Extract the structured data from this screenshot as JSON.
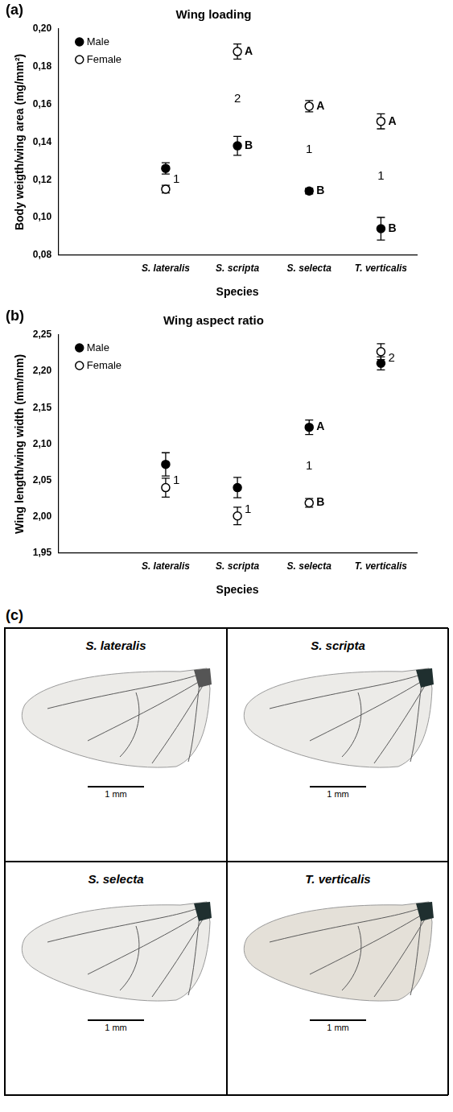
{
  "chart_data": [
    {
      "type": "scatter",
      "panel": "(a)",
      "title": "Wing loading",
      "x_label": "Species",
      "y_label": "Body weigth/wing area (mg/mm²)",
      "categories": [
        null,
        "S. lateralis",
        "S. scripta",
        "S. selecta",
        "T. verticalis"
      ],
      "series": [
        {
          "name": "Male",
          "color": "#000000",
          "marker": "circle",
          "values": [
            null,
            0.126,
            0.138,
            0.114,
            0.094
          ],
          "errors": [
            null,
            0.003,
            0.005,
            0.0015,
            0.006
          ]
        },
        {
          "name": "Female",
          "color": "#000000",
          "marker": "open_circle",
          "values": [
            null,
            0.115,
            0.188,
            0.159,
            0.151
          ],
          "errors": [
            null,
            0.002,
            0.004,
            0.003,
            0.004
          ]
        }
      ],
      "ylim": [
        0.08,
        0.2
      ],
      "yticks": [
        {
          "value": 0.08,
          "label": "0,08"
        },
        {
          "value": 0.1,
          "label": "0,10"
        },
        {
          "value": 0.12,
          "label": "0,12"
        },
        {
          "value": 0.14,
          "label": "0,14"
        },
        {
          "value": 0.16,
          "label": "0,16"
        },
        {
          "value": 0.18,
          "label": "0,18"
        },
        {
          "value": 0.2,
          "label": "0,20"
        }
      ],
      "grid": false,
      "legend": "top left",
      "annotations": [
        {
          "text": "1",
          "x": "S. lateralis",
          "y": 0.12
        },
        {
          "text": "A",
          "x": "S. scripta",
          "y": 0.188
        },
        {
          "text": "2",
          "x": "S. scripta",
          "y": 0.163
        },
        {
          "text": "B",
          "x": "S. scripta",
          "y": 0.138
        },
        {
          "text": "A",
          "x": "S. selecta",
          "y": 0.159
        },
        {
          "text": "1",
          "x": "S. selecta",
          "y": 0.136
        },
        {
          "text": "B",
          "x": "S. selecta",
          "y": 0.114
        },
        {
          "text": "A",
          "x": "T. verticalis",
          "y": 0.151
        },
        {
          "text": "1",
          "x": "T. verticalis",
          "y": 0.122
        },
        {
          "text": "B",
          "x": "T. verticalis",
          "y": 0.094
        }
      ]
    },
    {
      "type": "scatter",
      "panel": "(b)",
      "title": "Wing aspect ratio",
      "x_label": "Species",
      "y_label": "Wing length/wing width (mm/mm)",
      "categories": [
        null,
        "S. lateralis",
        "S. scripta",
        "S. selecta",
        "T. verticalis"
      ],
      "series": [
        {
          "name": "Male",
          "color": "#000000",
          "marker": "circle",
          "values": [
            null,
            2.072,
            2.04,
            2.123,
            2.211
          ],
          "errors": [
            null,
            0.016,
            0.014,
            0.01,
            0.009
          ]
        },
        {
          "name": "Female",
          "color": "#000000",
          "marker": "open_circle",
          "values": [
            null,
            2.04,
            2.001,
            2.019,
            2.227
          ],
          "errors": [
            null,
            0.013,
            0.012,
            0.006,
            0.011
          ]
        }
      ],
      "ylim": [
        1.95,
        2.25
      ],
      "yticks": [
        {
          "value": 1.95,
          "label": "1,95"
        },
        {
          "value": 2.0,
          "label": "2,00"
        },
        {
          "value": 2.05,
          "label": "2,05"
        },
        {
          "value": 2.1,
          "label": "2,10"
        },
        {
          "value": 2.15,
          "label": "2,15"
        },
        {
          "value": 2.2,
          "label": "2,20"
        },
        {
          "value": 2.25,
          "label": "2,25"
        }
      ],
      "grid": false,
      "legend": "top left",
      "annotations": [
        {
          "text": "1",
          "x": "S. lateralis",
          "y": 2.05
        },
        {
          "text": "1",
          "x": "S. scripta",
          "y": 2.01
        },
        {
          "text": "A",
          "x": "S. selecta",
          "y": 2.123
        },
        {
          "text": "1",
          "x": "S. selecta",
          "y": 2.07
        },
        {
          "text": "B",
          "x": "S. selecta",
          "y": 2.019
        },
        {
          "text": "2",
          "x": "T. verticalis",
          "y": 2.218
        }
      ]
    }
  ],
  "image_panel": {
    "label": "(c)",
    "images": [
      {
        "title": "S. lateralis",
        "scale_bar": "1 mm"
      },
      {
        "title": "S. scripta",
        "scale_bar": "1 mm"
      },
      {
        "title": "S. selecta",
        "scale_bar": "1 mm"
      },
      {
        "title": "T. verticalis",
        "scale_bar": "1 mm"
      }
    ]
  }
}
